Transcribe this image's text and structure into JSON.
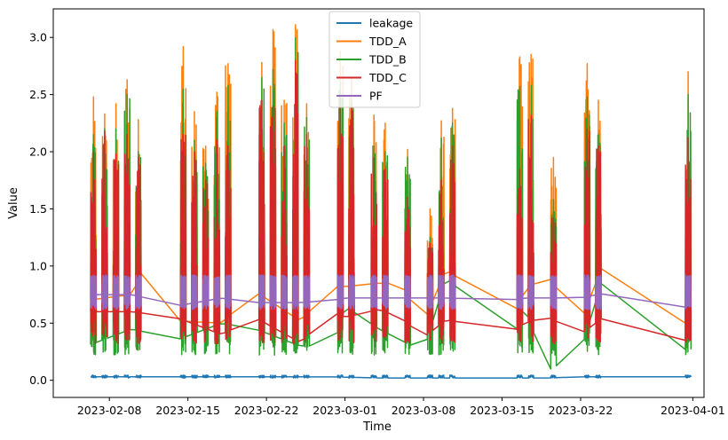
{
  "chart_data": {
    "type": "line",
    "title": "",
    "xlabel": "Time",
    "ylabel": "Value",
    "xlim": [
      "2023-02-03",
      "2023-04-02"
    ],
    "ylim": [
      -0.15,
      3.25
    ],
    "grid": false,
    "legend_position": "top-center",
    "x_ticks": [
      "2023-02-08",
      "2023-02-15",
      "2023-02-22",
      "2023-03-01",
      "2023-03-08",
      "2023-03-15",
      "2023-03-22",
      "2023-04-01"
    ],
    "y_ticks": [
      0.0,
      0.5,
      1.0,
      1.5,
      2.0,
      2.5,
      3.0
    ],
    "y_tick_labels": [
      "0.0",
      "0.5",
      "1.0",
      "1.5",
      "2.0",
      "2.5",
      "3.0"
    ],
    "active_periods": [
      {
        "start": "2023-02-06 08:00",
        "end": "2023-02-06 20:00",
        "peak_a": 2.48,
        "peak_b": 2.15,
        "peak_c": 2.0
      },
      {
        "start": "2023-02-07 08:00",
        "end": "2023-02-07 20:00",
        "peak_a": 2.33,
        "peak_b": 2.2,
        "peak_c": 2.18
      },
      {
        "start": "2023-02-08 08:00",
        "end": "2023-02-08 20:00",
        "peak_a": 2.42,
        "peak_b": 2.2,
        "peak_c": 1.98
      },
      {
        "start": "2023-02-09 08:00",
        "end": "2023-02-09 20:00",
        "peak_a": 2.63,
        "peak_b": 2.5,
        "peak_c": 2.15
      },
      {
        "start": "2023-02-10 08:00",
        "end": "2023-02-10 20:00",
        "peak_a": 2.28,
        "peak_b": 2.0,
        "peak_c": 1.95
      },
      {
        "start": "2023-02-14 08:00",
        "end": "2023-02-14 20:00",
        "peak_a": 2.92,
        "peak_b": 2.55,
        "peak_c": 2.15
      },
      {
        "start": "2023-02-15 08:00",
        "end": "2023-02-15 20:00",
        "peak_a": 2.35,
        "peak_b": 2.1,
        "peak_c": 2.0
      },
      {
        "start": "2023-02-16 08:00",
        "end": "2023-02-16 20:00",
        "peak_a": 2.05,
        "peak_b": 1.9,
        "peak_c": 1.75
      },
      {
        "start": "2023-02-17 08:00",
        "end": "2023-02-17 20:00",
        "peak_a": 2.52,
        "peak_b": 2.35,
        "peak_c": 2.1
      },
      {
        "start": "2023-02-18 08:00",
        "end": "2023-02-18 20:00",
        "peak_a": 2.77,
        "peak_b": 2.58,
        "peak_c": 2.05
      },
      {
        "start": "2023-02-21 08:00",
        "end": "2023-02-21 20:00",
        "peak_a": 2.78,
        "peak_b": 2.65,
        "peak_c": 2.45
      },
      {
        "start": "2023-02-22 08:00",
        "end": "2023-02-22 20:00",
        "peak_a": 3.07,
        "peak_b": 2.72,
        "peak_c": 2.4
      },
      {
        "start": "2023-02-23 08:00",
        "end": "2023-02-23 20:00",
        "peak_a": 2.45,
        "peak_b": 2.25,
        "peak_c": 2.05
      },
      {
        "start": "2023-02-24 08:00",
        "end": "2023-02-24 20:00",
        "peak_a": 3.11,
        "peak_b": 3.0,
        "peak_c": 2.8
      },
      {
        "start": "2023-02-25 08:00",
        "end": "2023-02-25 20:00",
        "peak_a": 2.42,
        "peak_b": 2.3,
        "peak_c": 2.15
      },
      {
        "start": "2023-02-28 08:00",
        "end": "2023-02-28 20:00",
        "peak_a": 2.88,
        "peak_b": 2.6,
        "peak_c": 2.47
      },
      {
        "start": "2023-03-01 08:00",
        "end": "2023-03-01 20:00",
        "peak_a": 2.65,
        "peak_b": 2.45,
        "peak_c": 2.4
      },
      {
        "start": "2023-03-03 08:00",
        "end": "2023-03-03 20:00",
        "peak_a": 2.32,
        "peak_b": 2.05,
        "peak_c": 1.95
      },
      {
        "start": "2023-03-04 08:00",
        "end": "2023-03-04 20:00",
        "peak_a": 2.25,
        "peak_b": 2.0,
        "peak_c": 1.85
      },
      {
        "start": "2023-03-06 08:00",
        "end": "2023-03-06 20:00",
        "peak_a": 2.02,
        "peak_b": 1.95,
        "peak_c": 1.6
      },
      {
        "start": "2023-03-08 08:00",
        "end": "2023-03-08 20:00",
        "peak_a": 1.5,
        "peak_b": 1.25,
        "peak_c": 1.2
      },
      {
        "start": "2023-03-09 08:00",
        "end": "2023-03-09 20:00",
        "peak_a": 2.27,
        "peak_b": 2.12,
        "peak_c": 1.75
      },
      {
        "start": "2023-03-10 08:00",
        "end": "2023-03-10 20:00",
        "peak_a": 2.38,
        "peak_b": 2.25,
        "peak_c": 2.05
      },
      {
        "start": "2023-03-16 08:00",
        "end": "2023-03-16 20:00",
        "peak_a": 2.83,
        "peak_b": 2.57,
        "peak_c": 1.85
      },
      {
        "start": "2023-03-17 08:00",
        "end": "2023-03-17 20:00",
        "peak_a": 2.85,
        "peak_b": 2.58,
        "peak_c": 2.32
      },
      {
        "start": "2023-03-19 08:00",
        "end": "2023-03-19 20:00",
        "peak_a": 1.95,
        "peak_b": 1.58,
        "peak_c": 1.42
      },
      {
        "start": "2023-03-22 08:00",
        "end": "2023-03-22 20:00",
        "peak_a": 2.77,
        "peak_b": 2.48,
        "peak_c": 2.2
      },
      {
        "start": "2023-03-23 08:00",
        "end": "2023-03-23 20:00",
        "peak_a": 2.45,
        "peak_b": 2.15,
        "peak_c": 2.05
      },
      {
        "start": "2023-03-31 08:00",
        "end": "2023-03-31 20:00",
        "peak_a": 2.7,
        "peak_b": 2.5,
        "peak_c": 2.12
      }
    ],
    "series": [
      {
        "name": "leakage",
        "color": "#1f77b4",
        "x": [
          "2023-02-06",
          "2023-02-10",
          "2023-02-14",
          "2023-02-18",
          "2023-02-21",
          "2023-02-25",
          "2023-02-28",
          "2023-03-04",
          "2023-03-06",
          "2023-03-10",
          "2023-03-16",
          "2023-03-19",
          "2023-03-22",
          "2023-03-31"
        ],
        "values": [
          0.03,
          0.03,
          0.03,
          0.03,
          0.03,
          0.03,
          0.03,
          0.02,
          0.02,
          0.02,
          0.02,
          0.02,
          0.03,
          0.03
        ]
      },
      {
        "name": "TDD_A",
        "color": "#ff7f0e",
        "x": [
          "2023-02-06",
          "2023-02-10",
          "2023-02-11",
          "2023-02-14",
          "2023-02-18",
          "2023-02-21",
          "2023-02-25",
          "2023-02-28",
          "2023-03-01",
          "2023-03-04",
          "2023-03-06",
          "2023-03-08",
          "2023-03-10",
          "2023-03-16",
          "2023-03-17",
          "2023-03-19",
          "2023-03-22",
          "2023-03-24",
          "2023-03-31"
        ],
        "values": [
          0.7,
          0.75,
          0.97,
          0.52,
          0.5,
          0.78,
          0.52,
          0.82,
          0.82,
          0.85,
          0.85,
          0.5,
          0.97,
          0.55,
          0.78,
          0.93,
          0.5,
          1.02,
          0.5
        ]
      },
      {
        "name": "TDD_B",
        "color": "#2ca02c",
        "x": [
          "2023-02-06",
          "2023-02-10",
          "2023-02-14",
          "2023-02-18",
          "2023-02-21",
          "2023-02-25",
          "2023-02-28",
          "2023-03-01",
          "2023-03-04",
          "2023-03-06",
          "2023-03-08",
          "2023-03-10",
          "2023-03-16",
          "2023-03-17",
          "2023-03-19",
          "2023-03-22",
          "2023-03-24",
          "2023-03-31"
        ],
        "values": [
          0.3,
          0.45,
          0.35,
          0.5,
          0.45,
          0.3,
          0.3,
          0.65,
          0.45,
          0.35,
          0.25,
          0.9,
          0.35,
          0.65,
          0.08,
          0.25,
          0.9,
          0.27
        ]
      },
      {
        "name": "TDD_C",
        "color": "#d62728",
        "x": [
          "2023-02-06",
          "2023-02-10",
          "2023-02-14",
          "2023-02-18",
          "2023-02-21",
          "2023-02-25",
          "2023-02-28",
          "2023-03-01",
          "2023-03-04",
          "2023-03-06",
          "2023-03-08",
          "2023-03-10",
          "2023-03-16",
          "2023-03-17",
          "2023-03-19",
          "2023-03-22",
          "2023-03-24",
          "2023-03-31"
        ],
        "values": [
          0.6,
          0.6,
          0.55,
          0.4,
          0.55,
          0.33,
          0.6,
          0.55,
          0.62,
          0.55,
          0.37,
          0.53,
          0.42,
          0.5,
          0.56,
          0.4,
          0.55,
          0.35
        ]
      },
      {
        "name": "PF",
        "color": "#9467bd",
        "x": [
          "2023-02-06",
          "2023-02-10",
          "2023-02-14",
          "2023-02-18",
          "2023-02-21",
          "2023-02-25",
          "2023-02-28",
          "2023-03-01",
          "2023-03-04",
          "2023-03-06",
          "2023-03-08",
          "2023-03-10",
          "2023-03-16",
          "2023-03-17",
          "2023-03-19",
          "2023-03-22",
          "2023-03-24",
          "2023-03-31"
        ],
        "values": [
          0.75,
          0.75,
          0.65,
          0.72,
          0.68,
          0.68,
          0.7,
          0.72,
          0.72,
          0.72,
          0.72,
          0.72,
          0.7,
          0.72,
          0.72,
          0.72,
          0.76,
          0.64
        ]
      }
    ]
  }
}
